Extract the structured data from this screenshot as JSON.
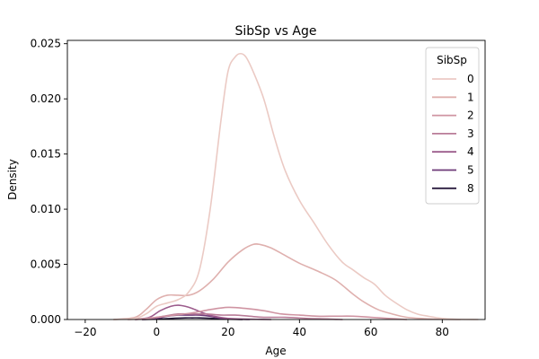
{
  "chart_data": {
    "type": "line",
    "title": "SibSp vs Age",
    "xlabel": "Age",
    "ylabel": "Density",
    "xlim": [
      -25,
      92
    ],
    "ylim": [
      0,
      0.0253
    ],
    "xticks": [
      -20,
      0,
      20,
      40,
      60,
      80
    ],
    "xtick_labels": [
      "−20",
      "0",
      "20",
      "40",
      "60",
      "80"
    ],
    "yticks": [
      0,
      0.005,
      0.01,
      0.015,
      0.02,
      0.025
    ],
    "ytick_labels": [
      "0.000",
      "0.005",
      "0.010",
      "0.015",
      "0.020",
      "0.025"
    ],
    "grid": false,
    "legend": {
      "title": "SibSp",
      "position": "top-right"
    },
    "series": [
      {
        "name": "0",
        "color": "#ebcac4",
        "x": [
          -12,
          -6,
          -3,
          0,
          3,
          6,
          9,
          12,
          15,
          18,
          20,
          22,
          23.5,
          25,
          27,
          30,
          33,
          36,
          40,
          44,
          48,
          52,
          55,
          58,
          61,
          64,
          67,
          70,
          73,
          76,
          80,
          84,
          90
        ],
        "y": [
          0,
          0.0001,
          0.0005,
          0.0012,
          0.0015,
          0.0018,
          0.0025,
          0.0045,
          0.01,
          0.018,
          0.0225,
          0.0238,
          0.0241,
          0.0238,
          0.0225,
          0.02,
          0.0165,
          0.0135,
          0.0108,
          0.0088,
          0.0068,
          0.0052,
          0.0045,
          0.0038,
          0.0032,
          0.0022,
          0.0015,
          0.0009,
          0.0005,
          0.0003,
          0.0001,
          3e-05,
          0
        ]
      },
      {
        "name": "1",
        "color": "#dfb0ae",
        "x": [
          -12,
          -6,
          -3,
          0,
          3,
          6,
          9,
          12,
          16,
          20,
          24,
          27,
          29,
          32,
          36,
          40,
          45,
          50,
          55,
          58,
          62,
          66,
          70,
          75,
          80,
          85
        ],
        "y": [
          0,
          0.0002,
          0.0009,
          0.0018,
          0.0022,
          0.0022,
          0.0022,
          0.0026,
          0.0037,
          0.0052,
          0.0063,
          0.0068,
          0.0068,
          0.0065,
          0.0058,
          0.0051,
          0.0044,
          0.0036,
          0.0023,
          0.0016,
          0.0009,
          0.0005,
          0.0002,
          8e-05,
          2e-05,
          0
        ]
      },
      {
        "name": "2",
        "color": "#cf94a2",
        "x": [
          -8,
          -3,
          0,
          5,
          10,
          15,
          20,
          25,
          30,
          35,
          40,
          45,
          50,
          55,
          60,
          65,
          70
        ],
        "y": [
          0,
          0.0001,
          0.0002,
          0.0004,
          0.0006,
          0.0009,
          0.0011,
          0.001,
          0.0008,
          0.0005,
          0.0004,
          0.0003,
          0.0003,
          0.0003,
          0.0002,
          0.0001,
          0
        ]
      },
      {
        "name": "3",
        "color": "#b97c98",
        "x": [
          -6,
          -2,
          2,
          6,
          10,
          14,
          18,
          22,
          26,
          30,
          36,
          42,
          48,
          52
        ],
        "y": [
          0,
          0.0001,
          0.0003,
          0.0005,
          0.0005,
          0.0005,
          0.0004,
          0.0004,
          0.0003,
          0.0002,
          0.0002,
          0.0001,
          5e-05,
          0
        ]
      },
      {
        "name": "4",
        "color": "#9c5c8c",
        "x": [
          -6,
          -2,
          1,
          4,
          6,
          8,
          10,
          13,
          16,
          20,
          24,
          28,
          32
        ],
        "y": [
          0,
          0.0002,
          0.0008,
          0.0012,
          0.0013,
          0.0012,
          0.001,
          0.0006,
          0.0003,
          0.0001,
          5e-05,
          2e-05,
          0
        ]
      },
      {
        "name": "5",
        "color": "#6e3a78",
        "x": [
          -4,
          0,
          3,
          6,
          9,
          12,
          15,
          18,
          22,
          26
        ],
        "y": [
          0,
          0.0001,
          0.0003,
          0.0004,
          0.0004,
          0.0004,
          0.0003,
          0.0001,
          3e-05,
          0
        ]
      },
      {
        "name": "8",
        "color": "#2a1c3e",
        "x": [
          -4,
          0,
          4,
          8,
          10,
          12,
          16,
          20,
          24
        ],
        "y": [
          0,
          3e-05,
          0.0001,
          0.00015,
          0.00015,
          0.00015,
          0.0001,
          3e-05,
          0
        ]
      }
    ]
  }
}
